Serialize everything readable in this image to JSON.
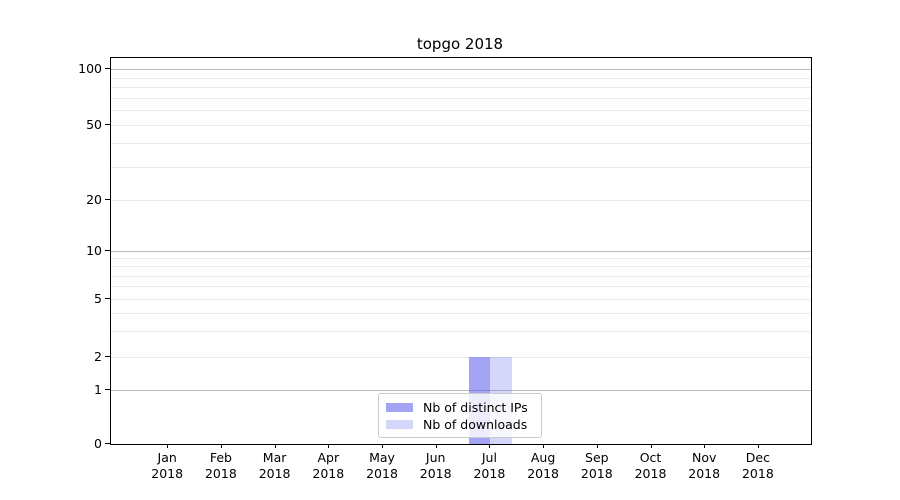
{
  "chart_data": {
    "type": "bar",
    "title": "topgo 2018",
    "year": "2018",
    "categories": [
      "Jan",
      "Feb",
      "Mar",
      "Apr",
      "May",
      "Jun",
      "Jul",
      "Aug",
      "Sep",
      "Oct",
      "Nov",
      "Dec"
    ],
    "series": [
      {
        "name": "Nb of distinct IPs",
        "color": "#5a5aeb",
        "opacity": 0.55,
        "values": [
          0,
          0,
          0,
          0,
          0,
          0,
          2,
          0,
          0,
          0,
          0,
          0
        ]
      },
      {
        "name": "Nb of downloads",
        "color": "#5a5aeb",
        "opacity": 0.25,
        "values": [
          0,
          0,
          0,
          0,
          0,
          0,
          2,
          0,
          0,
          0,
          0,
          0
        ]
      }
    ],
    "scale": "symlog",
    "ylim": [
      0,
      100
    ],
    "y_ticks": [
      0,
      1,
      2,
      5,
      10,
      20,
      50,
      100
    ],
    "y_major_ticks": [
      1,
      10,
      100
    ],
    "y_minor_gridlines": [
      3,
      4,
      6,
      7,
      8,
      9,
      30,
      40,
      60,
      70,
      80,
      90
    ],
    "grid": "horizontal",
    "legend_position": "lower center",
    "colors": {
      "bar_distinct_ips_on_white": "#a9a9f4",
      "bar_downloads_on_white": "#d8d8f8",
      "major_gridline": "#bcbcbc",
      "minor_gridline": "#ebebeb",
      "frame": "#000000"
    }
  }
}
